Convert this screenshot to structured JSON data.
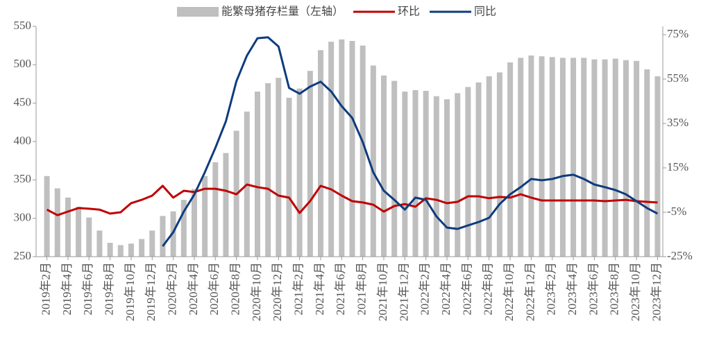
{
  "chart_data": {
    "type": "bar_line",
    "legend": "top",
    "categories": [
      "2019年2月",
      null,
      "2019年4月",
      null,
      "2019年6月",
      null,
      "2019年8月",
      null,
      "2019年10月",
      null,
      "2019年12月",
      null,
      "2020年2月",
      null,
      "2020年4月",
      null,
      "2020年6月",
      null,
      "2020年8月",
      null,
      "2020年10月",
      null,
      "2020年12月",
      null,
      "2021年2月",
      null,
      "2021年4月",
      null,
      "2021年6月",
      null,
      "2021年8月",
      null,
      "2021年10月",
      null,
      "2021年12月",
      null,
      "2022年2月",
      null,
      "2022年4月",
      null,
      "2022年6月",
      null,
      "2022年8月",
      null,
      "2022年10月",
      null,
      "2022年12月",
      null,
      "2023年2月",
      null,
      "2023年4月",
      null,
      "2023年6月",
      null,
      "2023年8月",
      null,
      "2023年10月",
      null,
      "2023年12月"
    ],
    "series": [
      {
        "name": "能繁母猪存栏量（左轴）",
        "color": "#bfbfbf",
        "kind": "bar",
        "values": [
          355,
          339,
          327,
          315,
          301,
          284,
          268,
          265,
          267,
          273,
          284,
          303,
          309,
          324,
          338,
          355,
          373,
          385,
          414,
          439,
          465,
          476,
          483,
          457,
          469,
          492,
          519,
          530,
          533,
          531,
          525,
          499,
          486,
          479,
          465,
          467,
          466,
          459,
          455,
          463,
          471,
          477,
          485,
          490,
          503,
          509,
          512,
          511,
          510,
          509,
          509,
          509,
          507,
          507,
          508,
          506,
          505,
          494,
          485
        ]
      },
      {
        "name": "环比",
        "color": "#c00000",
        "kind": "line",
        "axis": "y2",
        "values": [
          -3.8,
          -6.3,
          -4.7,
          -3.1,
          -3.4,
          -3.8,
          -5.6,
          -5.0,
          -0.9,
          0.6,
          2.5,
          6.9,
          1.6,
          4.7,
          4.1,
          5.6,
          5.6,
          4.7,
          3.1,
          7.5,
          6.3,
          5.6,
          2.5,
          1.6,
          -5.3,
          0,
          6.9,
          5.3,
          2.5,
          0,
          -0.6,
          -1.6,
          -4.7,
          -2.2,
          -1.3,
          -2.5,
          1.3,
          0.6,
          -0.9,
          -0.3,
          2.2,
          2.2,
          1.3,
          1.9,
          1.6,
          3.1,
          1.6,
          0.3,
          0.3,
          0.3,
          0.3,
          0.3,
          0.3,
          0,
          0.3,
          0.6,
          0,
          -0.3,
          -0.6
        ]
      },
      {
        "name": "同比",
        "color": "#0d3b7e",
        "kind": "line",
        "axis": "y2",
        "values": [
          null,
          null,
          null,
          null,
          null,
          null,
          null,
          null,
          null,
          null,
          null,
          -20.3,
          -14,
          -4.7,
          3,
          13,
          24,
          36,
          54,
          65.6,
          73.4,
          73.8,
          69.7,
          51,
          48.4,
          51.6,
          53.8,
          49.4,
          42.8,
          37.5,
          26.6,
          13,
          4.7,
          0.6,
          -3.8,
          1.6,
          0.6,
          -6.9,
          -11.9,
          -12.5,
          -10.9,
          -9.4,
          -7.5,
          -1.3,
          3.1,
          6.3,
          10,
          9.4,
          10,
          11.3,
          11.9,
          10,
          7.5,
          6.3,
          5,
          3.1,
          0,
          -3.1,
          -5.6
        ]
      }
    ],
    "ylim": [
      250,
      550
    ],
    "yticks": [
      250,
      300,
      350,
      400,
      450,
      500,
      550
    ],
    "y2lim": [
      -25,
      78.75
    ],
    "y2ticks": [
      {
        "value": -25,
        "label": "-25%"
      },
      {
        "value": -5,
        "label": "-5%"
      },
      {
        "value": 15,
        "label": "15%"
      },
      {
        "value": 35,
        "label": "35%"
      },
      {
        "value": 55,
        "label": "55%"
      },
      {
        "value": 75,
        "label": "75%"
      }
    ]
  }
}
